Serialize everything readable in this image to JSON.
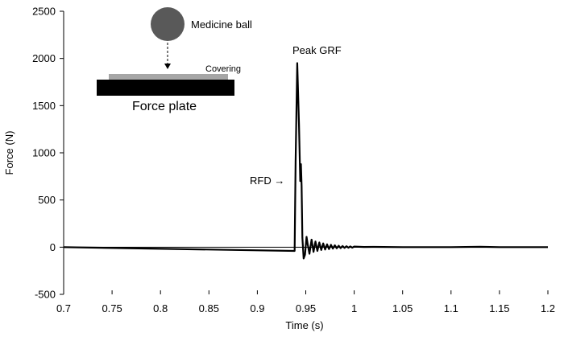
{
  "chart_data": {
    "type": "line",
    "title": "",
    "xlabel": "Time (s)",
    "ylabel": "Force (N)",
    "xlim": [
      0.7,
      1.2
    ],
    "ylim": [
      -500,
      2500
    ],
    "x_ticks": [
      0.7,
      0.75,
      0.8,
      0.85,
      0.9,
      0.95,
      1,
      1.05,
      1.1,
      1.15,
      1.2
    ],
    "x_tick_labels": [
      "0.7",
      "0.75",
      "0.8",
      "0.85",
      "0.9",
      "0.95",
      "1",
      "1.05",
      "1.1",
      "1.15",
      "1.2"
    ],
    "y_ticks": [
      -500,
      0,
      500,
      1000,
      1500,
      2000,
      2500
    ],
    "y_tick_labels": [
      "-500",
      "0",
      "500",
      "1000",
      "1500",
      "2000",
      "2500"
    ],
    "grid": false,
    "legend": "none",
    "line_color": "#000000",
    "series": [
      {
        "x": [
          0.7,
          0.9385,
          0.9395,
          0.9412,
          0.943,
          0.9443,
          0.945,
          0.9457,
          0.9465,
          0.9478,
          0.9492,
          0.9508,
          0.952,
          0.9538,
          0.956,
          0.958,
          0.96,
          0.962,
          0.964,
          0.966,
          0.968,
          0.97,
          0.972,
          0.974,
          0.976,
          0.978,
          0.98,
          0.982,
          0.984,
          0.986,
          0.988,
          0.99,
          0.992,
          0.994,
          0.996,
          0.998,
          1.0,
          1.005,
          1.01,
          1.02,
          1.05,
          1.1,
          1.13,
          1.15,
          1.2
        ],
        "y": [
          0,
          -40,
          900,
          1950,
          1300,
          700,
          880,
          650,
          100,
          -120,
          -80,
          110,
          30,
          -70,
          80,
          -50,
          60,
          -40,
          50,
          -30,
          40,
          -25,
          30,
          -20,
          25,
          -15,
          20,
          -12,
          15,
          -10,
          12,
          -8,
          10,
          -6,
          8,
          -5,
          6,
          4,
          2,
          3,
          0,
          0,
          4,
          0,
          0
        ]
      }
    ],
    "annotations": {
      "peak": "Peak GRF",
      "rfd": "RFD →"
    }
  },
  "inset": {
    "ball_label": "Medicine ball",
    "covering_label": "Covering",
    "plate_label": "Force plate",
    "ball_color": "#595959",
    "covering_color": "#a6a6a6",
    "plate_color": "#000000"
  }
}
